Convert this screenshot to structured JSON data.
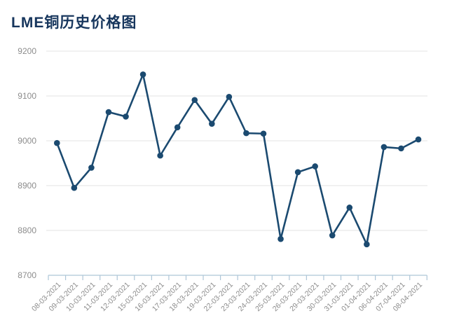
{
  "title": "LME铜历史价格图",
  "colors": {
    "title": "#17365d",
    "line": "#1b4a70",
    "marker": "#1b4a70",
    "grid": "#e3e3e3",
    "axis": "#aec6d8",
    "tick_label": "#8c8c8c"
  },
  "chart_data": {
    "type": "line",
    "title": "LME铜历史价格图",
    "x": [
      "08-03-2021",
      "09-03-2021",
      "10-03-2021",
      "11-03-2021",
      "12-03-2021",
      "15-03-2021",
      "16-03-2021",
      "17-03-2021",
      "18-03-2021",
      "19-03-2021",
      "22-03-2021",
      "23-03-2021",
      "24-03-2021",
      "25-03-2021",
      "26-03-2021",
      "29-03-2021",
      "30-03-2021",
      "31-03-2021",
      "01-04-2021",
      "06-04-2021",
      "07-04-2021",
      "08-04-2021"
    ],
    "values": [
      8995,
      8895,
      8940,
      9064,
      9054,
      9148,
      8967,
      9030,
      9091,
      9038,
      9098,
      9017,
      9016,
      8781,
      8930,
      8943,
      8789,
      8851,
      8769,
      8986,
      8983,
      9003
    ],
    "ylim": [
      8700,
      9200
    ],
    "ytick_interval": 100,
    "yticks": [
      8700,
      8800,
      8900,
      9000,
      9100,
      9200
    ],
    "grid": true,
    "legend_position": "none",
    "marker": "circle",
    "x_label_rotation_deg": 45
  }
}
